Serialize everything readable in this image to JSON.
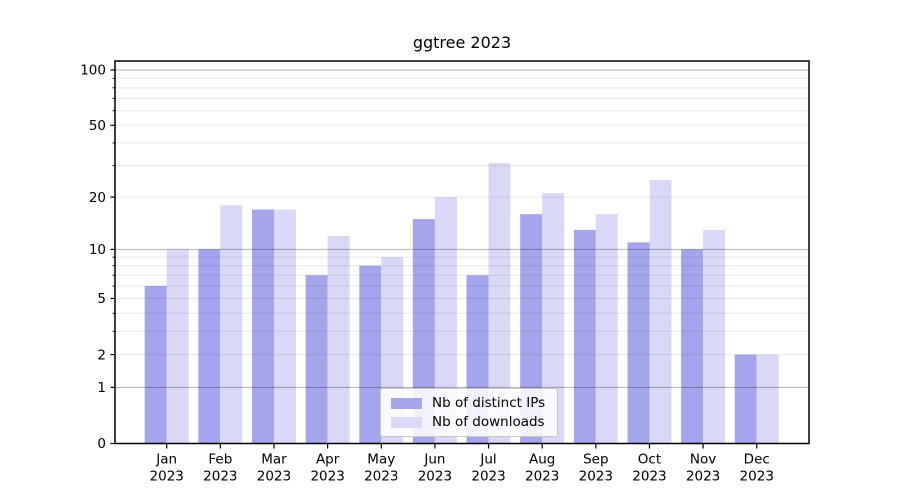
{
  "title": "ggtree 2023",
  "chart_data": {
    "type": "bar",
    "title": "ggtree 2023",
    "categories": [
      "Jan 2023",
      "Feb 2023",
      "Mar 2023",
      "Apr 2023",
      "May 2023",
      "Jun 2023",
      "Jul 2023",
      "Aug 2023",
      "Sep 2023",
      "Oct 2023",
      "Nov 2023",
      "Dec 2023"
    ],
    "series": [
      {
        "name": "Nb of distinct IPs",
        "color": "#a5a5ee",
        "values": [
          6,
          10,
          17,
          7,
          8,
          15,
          7,
          16,
          13,
          11,
          10,
          2
        ]
      },
      {
        "name": "Nb of downloads",
        "color": "#d9d9f7",
        "values": [
          10,
          18,
          17,
          12,
          9,
          20,
          31,
          21,
          16,
          25,
          13,
          2
        ]
      }
    ],
    "xlabel": "",
    "ylabel": "",
    "yscale": "log10(1+y)",
    "yticks": [
      0,
      1,
      2,
      5,
      10,
      20,
      50,
      100
    ],
    "minor_yticks": [
      3,
      4,
      6,
      7,
      8,
      9,
      30,
      40,
      60,
      70,
      80,
      90
    ],
    "decade_ticks": [
      1,
      10,
      100
    ],
    "ylim": [
      0,
      112
    ],
    "grid": true,
    "legend_position": "lower center"
  },
  "colors": {
    "background": "#ffffff",
    "spine": "#000000",
    "major_grid": "rgba(0,0,0,0.30)",
    "minor_grid": "rgba(0,0,0,0.09)",
    "tick_label": "#000000"
  }
}
